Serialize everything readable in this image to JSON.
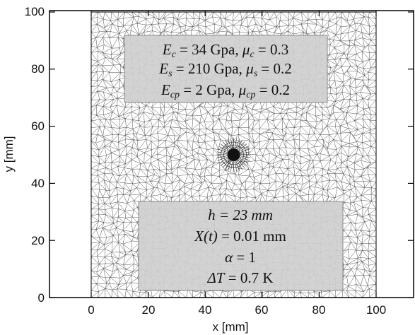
{
  "x_axis": {
    "label": "x [mm]",
    "ticks": [
      "0",
      "20",
      "40",
      "60",
      "80",
      "100"
    ],
    "range": [
      -10,
      110
    ]
  },
  "y_axis": {
    "label": "y [mm]",
    "ticks": [
      "0",
      "20",
      "40",
      "60",
      "80",
      "100"
    ],
    "range": [
      0,
      100
    ]
  },
  "domain_mm": {
    "x_min": 0,
    "x_max": 100,
    "y_min": 0,
    "y_max": 100
  },
  "inclusion": {
    "center_mm": [
      50,
      50
    ],
    "visual": "dark circular inclusion with radially refined mesh"
  },
  "material_box": {
    "line1": {
      "sym": "E",
      "sub": "c",
      "val": " = 34 Gpa, ",
      "sym2": "μ",
      "sub2": "c",
      "val2": " = 0.3"
    },
    "line2": {
      "sym": "E",
      "sub": "s",
      "val": " = 210 Gpa, ",
      "sym2": "μ",
      "sub2": "s",
      "val2": " = 0.2"
    },
    "line3": {
      "sym": "E",
      "sub": "cp",
      "val": " = 2 Gpa, ",
      "sym2": "μ",
      "sub2": "cp",
      "val2": " = 0.2"
    }
  },
  "param_box": {
    "line1": {
      "sym": "h",
      "val": " = 23 mm"
    },
    "line2": {
      "sym": "X(t)",
      "val": " = 0.01 mm"
    },
    "line3": {
      "sym": "α",
      "val": " = 1"
    },
    "line4": {
      "sym": "ΔT",
      "val": " = 0.7 K"
    }
  },
  "colors": {
    "mesh": "#3a3a3a",
    "box_fill": "#cfcfcf",
    "box_stroke": "#888888",
    "inclusion": "#111111"
  }
}
